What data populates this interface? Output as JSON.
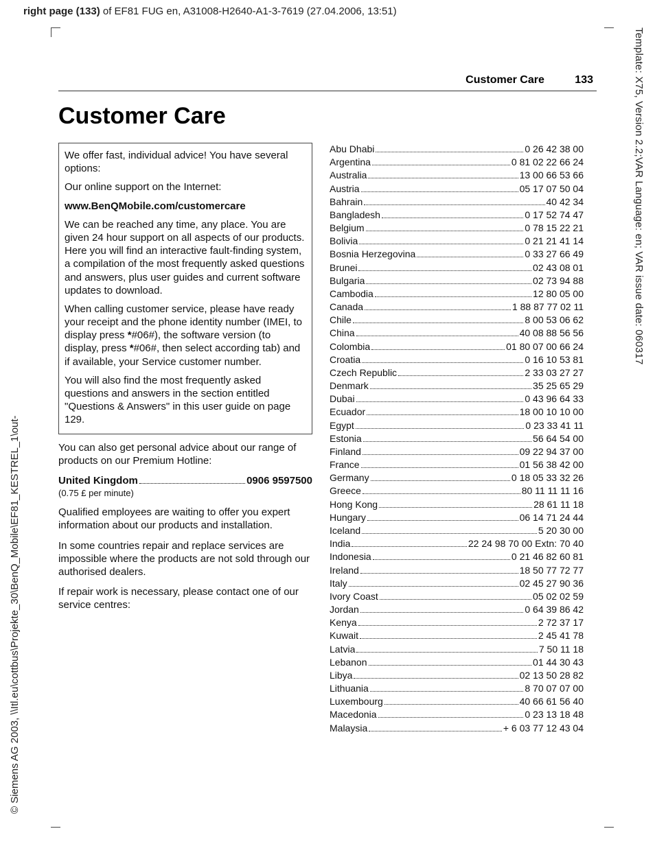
{
  "header": {
    "prefix_bold": "right page (133)",
    "rest": " of EF81 FUG en, A31008-H2640-A1-3-7619 (27.04.2006, 13:51)"
  },
  "running_head": {
    "title": "Customer Care",
    "page": "133"
  },
  "main_title": "Customer Care",
  "box": {
    "p1": "We offer fast, individual advice! You have several options:",
    "p2": "Our online support on the Internet:",
    "p3": "www.BenQMobile.com/customercare",
    "p4": "We can be reached any time, any place. You are given 24 hour support on all aspects of our products. Here you will find an interactive fault-finding system, a compilation of the most frequently asked questions and answers, plus user guides and current software updates to download.",
    "p5a": "When calling customer service, please have ready your receipt and the phone identity number (IMEI, to display press ",
    "p5b": "*",
    "p5c": "#06#), the software version (to display, press ",
    "p5d": "*",
    "p5e": "#06#, then select according tab) and if available, your Service customer number.",
    "p6": "You will also find the most frequently asked questions and answers in the section entitled \"Questions & Answers\" in this user guide on page 129."
  },
  "below": {
    "p1": "You can also get personal advice about our range of products on our Premium Hotline:",
    "uk_label": "United Kingdom",
    "uk_number": "0906 9597500",
    "rate": "(0.75 £ per minute)",
    "p2": "Qualified employees are waiting to offer you expert information about our products and installation.",
    "p3": "In some countries repair and replace services are impossible where the products are not sold through our authorised dealers.",
    "p4": "If repair work is necessary, please contact one of our service centres:"
  },
  "countries": [
    {
      "c": "Abu Dhabi",
      "p": "0 26 42 38 00"
    },
    {
      "c": "Argentina",
      "p": "0 81 02 22 66 24"
    },
    {
      "c": "Australia",
      "p": "13 00 66 53 66"
    },
    {
      "c": "Austria",
      "p": "05 17 07 50 04"
    },
    {
      "c": "Bahrain",
      "p": "40 42 34"
    },
    {
      "c": "Bangladesh",
      "p": "0 17 52 74 47"
    },
    {
      "c": "Belgium",
      "p": "0 78 15 22 21"
    },
    {
      "c": "Bolivia",
      "p": "0 21 21 41 14"
    },
    {
      "c": "Bosnia Herzegovina",
      "p": "0 33 27 66 49"
    },
    {
      "c": "Brunei",
      "p": "02 43 08 01"
    },
    {
      "c": "Bulgaria",
      "p": "02 73 94 88"
    },
    {
      "c": "Cambodia",
      "p": "12 80 05 00"
    },
    {
      "c": "Canada",
      "p": "1 88 87 77 02 11"
    },
    {
      "c": "Chile",
      "p": "8 00 53 06 62"
    },
    {
      "c": "China",
      "p": "40 08 88 56 56"
    },
    {
      "c": "Colombia",
      "p": "01 80 07 00 66 24"
    },
    {
      "c": "Croatia",
      "p": "0 16 10 53 81"
    },
    {
      "c": "Czech Republic",
      "p": "2 33 03 27 27"
    },
    {
      "c": "Denmark",
      "p": "35 25 65 29"
    },
    {
      "c": "Dubai",
      "p": "0 43 96 64 33"
    },
    {
      "c": "Ecuador",
      "p": "18 00 10 10 00"
    },
    {
      "c": "Egypt",
      "p": "0 23 33 41 11"
    },
    {
      "c": "Estonia",
      "p": "56 64 54 00"
    },
    {
      "c": "Finland",
      "p": "09 22 94 37 00"
    },
    {
      "c": "France",
      "p": "01 56 38 42 00"
    },
    {
      "c": "Germany",
      "p": "0 18 05 33 32 26"
    },
    {
      "c": "Greece",
      "p": "80 11 11 11 16"
    },
    {
      "c": "Hong Kong",
      "p": "28 61 11 18"
    },
    {
      "c": "Hungary",
      "p": "06 14 71 24 44"
    },
    {
      "c": "Iceland",
      "p": "5 20 30 00"
    },
    {
      "c": "India",
      "p": "22 24 98 70 00 Extn: 70 40"
    },
    {
      "c": "Indonesia",
      "p": "0 21 46 82 60 81"
    },
    {
      "c": "Ireland",
      "p": "18 50 77 72 77"
    },
    {
      "c": "Italy",
      "p": "02 45 27 90 36"
    },
    {
      "c": "Ivory Coast",
      "p": "05 02 02 59"
    },
    {
      "c": "Jordan",
      "p": "0 64 39 86 42"
    },
    {
      "c": "Kenya",
      "p": "2 72 37 17"
    },
    {
      "c": "Kuwait",
      "p": "2 45 41 78"
    },
    {
      "c": "Latvia",
      "p": "7 50 11 18"
    },
    {
      "c": "Lebanon",
      "p": "01 44 30 43"
    },
    {
      "c": "Libya",
      "p": "02 13 50 28 82"
    },
    {
      "c": "Lithuania",
      "p": "8 70 07 07 00"
    },
    {
      "c": "Luxembourg",
      "p": "40 66 61 56 40"
    },
    {
      "c": "Macedonia",
      "p": "0 23 13 18 48"
    },
    {
      "c": "Malaysia",
      "p": "+ 6 03 77 12 43 04"
    }
  ],
  "side_left": "© Siemens AG 2003, \\\\Itl.eu\\cottbus\\Projekte_30\\BenQ_Mobile\\EF81_KESTREL_1\\out-",
  "side_right": "Template: X75, Version 2.2;VAR Language: en; VAR issue date: 060317"
}
